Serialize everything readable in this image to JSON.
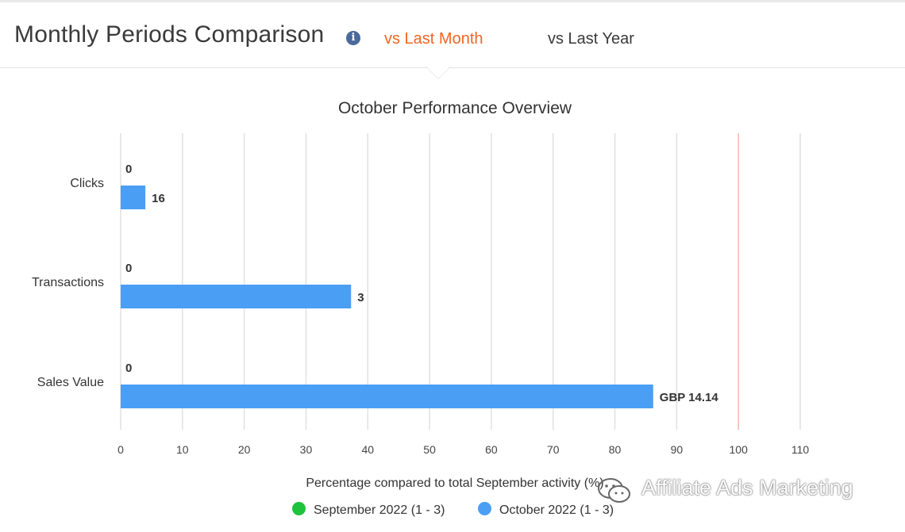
{
  "header": {
    "title": "Monthly Periods Comparison",
    "tabs": [
      {
        "label": "vs Last Month",
        "active": true
      },
      {
        "label": "vs Last Year",
        "active": false
      }
    ]
  },
  "chart_data": {
    "type": "bar",
    "orientation": "horizontal",
    "title": "October Performance Overview",
    "xlabel": "Percentage compared to total September activity (%)",
    "xlim": [
      0,
      110
    ],
    "xticks": [
      0,
      10,
      20,
      30,
      40,
      50,
      60,
      70,
      80,
      90,
      100,
      110
    ],
    "reference_line": 100,
    "categories": [
      "Clicks",
      "Transactions",
      "Sales Value"
    ],
    "series": [
      {
        "name": "September 2022 (1 - 3)",
        "color": "#1fc23c",
        "values": [
          0,
          0,
          0
        ],
        "labels": [
          "0",
          "0",
          "0"
        ]
      },
      {
        "name": "October 2022 (1 - 3)",
        "color": "#4a9ff5",
        "values": [
          4,
          37.3,
          86.2
        ],
        "labels": [
          "16",
          "3",
          "GBP 14.14"
        ]
      }
    ],
    "grid": true,
    "legend": "bottom-center"
  },
  "watermark": {
    "text": "Affiliate Ads Marketing"
  },
  "colors": {
    "accent": "#f06522",
    "bar": "#4a9ff5",
    "reference": "#f4b6b0",
    "grid": "#e1e1e1"
  }
}
